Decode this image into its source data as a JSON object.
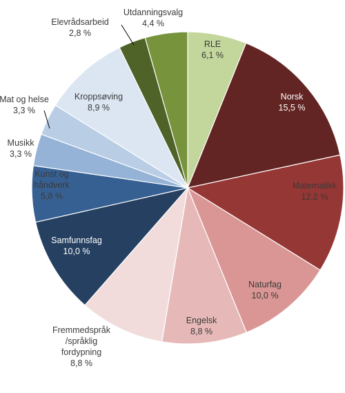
{
  "chart_data": {
    "type": "pie",
    "title": "",
    "slices": [
      {
        "name": "RLE",
        "label": "RLE",
        "value": 6.1,
        "value_label": "6,1 %",
        "color": "#c3d69b",
        "text_color": "#3a3a3a"
      },
      {
        "name": "Norsk",
        "label": "Norsk",
        "value": 15.5,
        "value_label": "15,5 %",
        "color": "#632523",
        "text_color": "#ffffff"
      },
      {
        "name": "Matematikk",
        "label": "Matematikk",
        "value": 12.2,
        "value_label": "12,2 %",
        "color": "#953735",
        "text_color": "#3a3a3a"
      },
      {
        "name": "Naturfag",
        "label": "Naturfag",
        "value": 10.0,
        "value_label": "10,0 %",
        "color": "#d99694",
        "text_color": "#3a3a3a"
      },
      {
        "name": "Engelsk",
        "label": "Engelsk",
        "value": 8.8,
        "value_label": "8,8 %",
        "color": "#e6b9b8",
        "text_color": "#3a3a3a"
      },
      {
        "name": "Fremmedspråk/språklig fordypning",
        "label": "Fremmedspråk /språklig fordypning",
        "label_lines": [
          "Fremmedspråk",
          "/språklig",
          "fordypning"
        ],
        "value": 8.8,
        "value_label": "8,8 %",
        "color": "#f2dcdb",
        "text_color": "#3a3a3a"
      },
      {
        "name": "Samfunnsfag",
        "label": "Samfunnsfag",
        "value": 10.0,
        "value_label": "10,0 %",
        "color": "#254061",
        "text_color": "#ffffff"
      },
      {
        "name": "Kunst og håndverk",
        "label": "Kunst og håndverk",
        "label_lines": [
          "Kunst og",
          "håndverk"
        ],
        "value": 5.8,
        "value_label": "5,8 %",
        "color": "#376092",
        "text_color": "#3a3a3a"
      },
      {
        "name": "Musikk",
        "label": "Musikk",
        "value": 3.3,
        "value_label": "3,3 %",
        "color": "#95b3d7",
        "text_color": "#3a3a3a"
      },
      {
        "name": "Mat og helse",
        "label": "Mat og helse",
        "value": 3.3,
        "value_label": "3,3 %",
        "color": "#b9cde5",
        "text_color": "#3a3a3a"
      },
      {
        "name": "Kroppsøving",
        "label": "Kroppsøving",
        "value": 8.9,
        "value_label": "8,9 %",
        "color": "#dce6f2",
        "text_color": "#3a3a3a"
      },
      {
        "name": "Elevrådsarbeid",
        "label": "Elevrådsarbeid",
        "value": 2.8,
        "value_label": "2,8 %",
        "color": "#4f6228",
        "text_color": "#3a3a3a"
      },
      {
        "name": "Utdanningsvalg",
        "label": "Utdanningsvalg",
        "value": 4.4,
        "value_label": "4,4 %",
        "color": "#77933c",
        "text_color": "#3a3a3a"
      }
    ]
  }
}
